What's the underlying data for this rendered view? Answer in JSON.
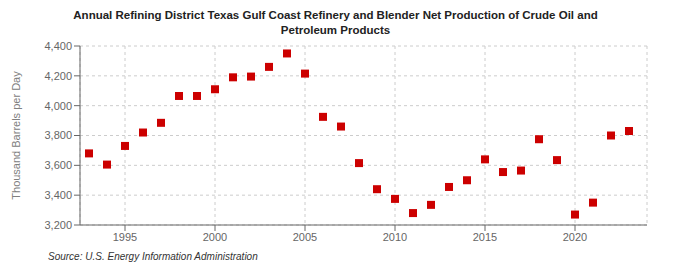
{
  "chart_data": {
    "type": "scatter",
    "title": "Annual Refining District Texas Gulf Coast Refinery and Blender Net Production of Crude Oil and\nPetroleum Products",
    "y_label": "Thousand Barrels per Day",
    "annotations": [
      "Source: U.S. Energy Information Administration"
    ],
    "x": [
      1993,
      1994,
      1995,
      1996,
      1997,
      1998,
      1999,
      2000,
      2001,
      2002,
      2003,
      2004,
      2005,
      2006,
      2007,
      2008,
      2009,
      2010,
      2011,
      2012,
      2013,
      2014,
      2015,
      2016,
      2017,
      2018,
      2019,
      2020,
      2021,
      2022,
      2023
    ],
    "values": [
      3680,
      3605,
      3730,
      3820,
      3885,
      4065,
      4065,
      4110,
      4190,
      4195,
      4260,
      4350,
      4215,
      3925,
      3860,
      3615,
      3440,
      3375,
      3280,
      3335,
      3455,
      3500,
      3640,
      3555,
      3565,
      3775,
      3635,
      3270,
      3350,
      3800,
      3830
    ],
    "color": "#cc0000",
    "marker": "square",
    "xlim": [
      1992.5,
      2024
    ],
    "xticks": [
      1995,
      2000,
      2005,
      2010,
      2015,
      2020
    ],
    "ylim": [
      3200,
      4400
    ],
    "yticks": [
      {
        "value": 3200,
        "label": "3,200"
      },
      {
        "value": 3400,
        "label": "3,400"
      },
      {
        "value": 3600,
        "label": "3,600"
      },
      {
        "value": 3800,
        "label": "3,800"
      },
      {
        "value": 4000,
        "label": "4,000"
      },
      {
        "value": 4200,
        "label": "4,200"
      },
      {
        "value": 4400,
        "label": "4,400"
      }
    ],
    "grid": true
  }
}
